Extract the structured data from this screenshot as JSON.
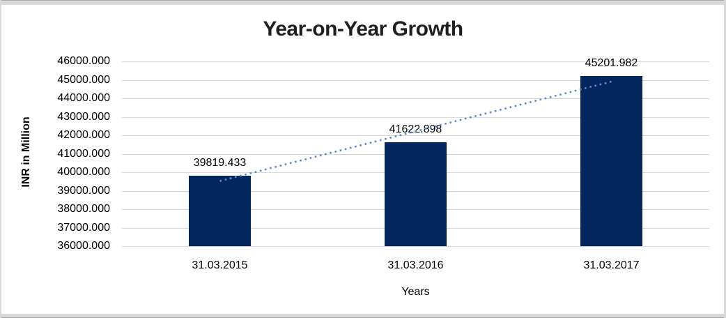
{
  "chart_data": {
    "type": "bar",
    "title": "Year-on-Year Growth",
    "xlabel": "Years",
    "ylabel": "INR in Million",
    "categories": [
      "31.03.2015",
      "31.03.2016",
      "31.03.2017"
    ],
    "values": [
      39819.433,
      41622.898,
      45201.982
    ],
    "value_labels": [
      "39819.433",
      "41622.898",
      "45201.982"
    ],
    "y_ticks": [
      "46000.000",
      "45000.000",
      "44000.000",
      "43000.000",
      "42000.000",
      "41000.000",
      "40000.000",
      "39000.000",
      "38000.000",
      "37000.000",
      "36000.000"
    ],
    "ylim": [
      36000,
      46000
    ],
    "grid": true,
    "legend": "none",
    "trendline": {
      "type": "linear",
      "style": "dotted",
      "color": "#5b8ad5"
    },
    "colors": {
      "bar": "#04265f",
      "gridline": "#d9d9d9",
      "frame_border": "#d9d9d9",
      "title_text": "#1f1f1f",
      "axis_text": "#000000"
    }
  }
}
